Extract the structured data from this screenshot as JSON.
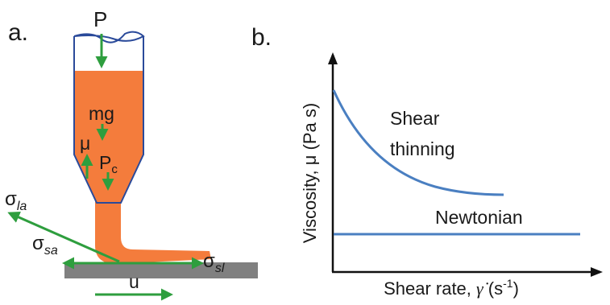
{
  "panel_a": {
    "label": "a.",
    "pressure": "P",
    "gravity": "mg",
    "viscosity": "μ",
    "capillary_main": "P",
    "capillary_sub": "c",
    "sigma_la_main": "σ",
    "sigma_la_sub": "la",
    "sigma_sa_main": "σ",
    "sigma_sa_sub": "sa",
    "sigma_sl_main": "σ",
    "sigma_sl_sub": "sl",
    "velocity": "u"
  },
  "panel_b": {
    "label": "b.",
    "ylabel": "Viscosity, μ (Pa s)",
    "xlabel_prefix": "Shear rate, ",
    "xlabel_symbol": "γ̇",
    "xlabel_unit": " (s",
    "xlabel_exp": "-1",
    "xlabel_close": ")",
    "shear_thinning_line1": "Shear",
    "shear_thinning_line2": "thinning",
    "newtonian": "Newtonian"
  },
  "colors": {
    "arrow": "#2e9e3e",
    "fluid": "#f47c3c",
    "outline": "#2a4a9a",
    "curve": "#4a7fc1",
    "substrate": "#808080",
    "axis": "#111111"
  }
}
